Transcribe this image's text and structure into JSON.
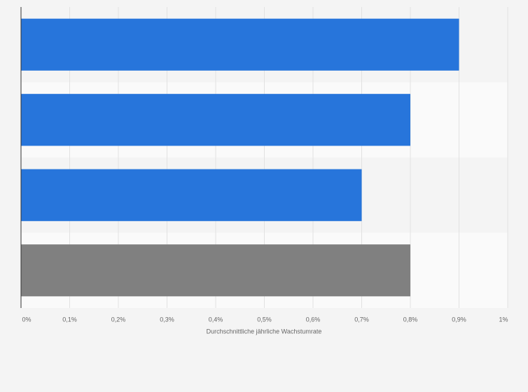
{
  "chart_data": {
    "type": "bar",
    "orientation": "horizontal",
    "x_label": "Durchschnittliche jährliche Wachstumrate",
    "categories": [
      null,
      null,
      null,
      null
    ],
    "values": [
      0.9,
      0.8,
      0.7,
      0.8
    ],
    "colors": [
      "#2775db",
      "#2775db",
      "#2775db",
      "#808080"
    ],
    "xlim": [
      0,
      1
    ],
    "xticks": [
      {
        "value": 0,
        "label": "0%"
      },
      {
        "value": 0.1,
        "label": "0,1%"
      },
      {
        "value": 0.2,
        "label": "0,2%"
      },
      {
        "value": 0.3,
        "label": "0,3%"
      },
      {
        "value": 0.4,
        "label": "0,4%"
      },
      {
        "value": 0.5,
        "label": "0,5%"
      },
      {
        "value": 0.6,
        "label": "0,6%"
      },
      {
        "value": 0.7,
        "label": "0,7%"
      },
      {
        "value": 0.8,
        "label": "0,8%"
      },
      {
        "value": 0.9,
        "label": "0,9%"
      },
      {
        "value": 1,
        "label": "1%"
      }
    ],
    "grid": true
  }
}
